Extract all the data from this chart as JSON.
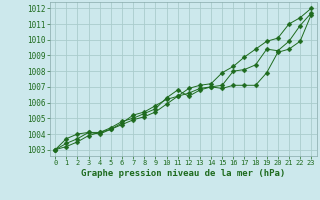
{
  "x": [
    0,
    1,
    2,
    3,
    4,
    5,
    6,
    7,
    8,
    9,
    10,
    11,
    12,
    13,
    14,
    15,
    16,
    17,
    18,
    19,
    20,
    21,
    22,
    23
  ],
  "line1": [
    1003.0,
    1003.2,
    1003.5,
    1003.9,
    1004.1,
    1004.3,
    1004.6,
    1004.9,
    1005.1,
    1005.4,
    1005.9,
    1006.4,
    1006.9,
    1007.1,
    1007.2,
    1007.9,
    1008.3,
    1008.9,
    1009.4,
    1009.9,
    1010.1,
    1011.0,
    1011.4,
    1012.0
  ],
  "line2": [
    1003.0,
    1003.7,
    1004.0,
    1004.1,
    1004.0,
    1004.3,
    1004.7,
    1005.2,
    1005.4,
    1005.8,
    1006.2,
    1006.4,
    1006.6,
    1006.9,
    1007.0,
    1007.1,
    1008.0,
    1008.1,
    1008.4,
    1009.4,
    1009.3,
    1009.9,
    1010.9,
    1011.7
  ],
  "line3": [
    1003.0,
    1003.4,
    1003.7,
    1004.1,
    1004.1,
    1004.4,
    1004.8,
    1005.0,
    1005.3,
    1005.6,
    1006.3,
    1006.8,
    1006.4,
    1006.8,
    1007.0,
    1006.9,
    1007.1,
    1007.1,
    1007.1,
    1007.9,
    1009.2,
    1009.4,
    1009.9,
    1011.6
  ],
  "bg_color": "#cce8ec",
  "grid_color": "#aacccc",
  "line_color": "#1e6b1e",
  "xlabel": "Graphe pression niveau de la mer (hPa)",
  "ylim": [
    1002.6,
    1012.4
  ],
  "yticks": [
    1003,
    1004,
    1005,
    1006,
    1007,
    1008,
    1009,
    1010,
    1011,
    1012
  ],
  "xticks": [
    0,
    1,
    2,
    3,
    4,
    5,
    6,
    7,
    8,
    9,
    10,
    11,
    12,
    13,
    14,
    15,
    16,
    17,
    18,
    19,
    20,
    21,
    22,
    23
  ],
  "markersize": 2.5,
  "linewidth": 0.7,
  "tick_fontsize": 5.5,
  "xlabel_fontsize": 6.5
}
